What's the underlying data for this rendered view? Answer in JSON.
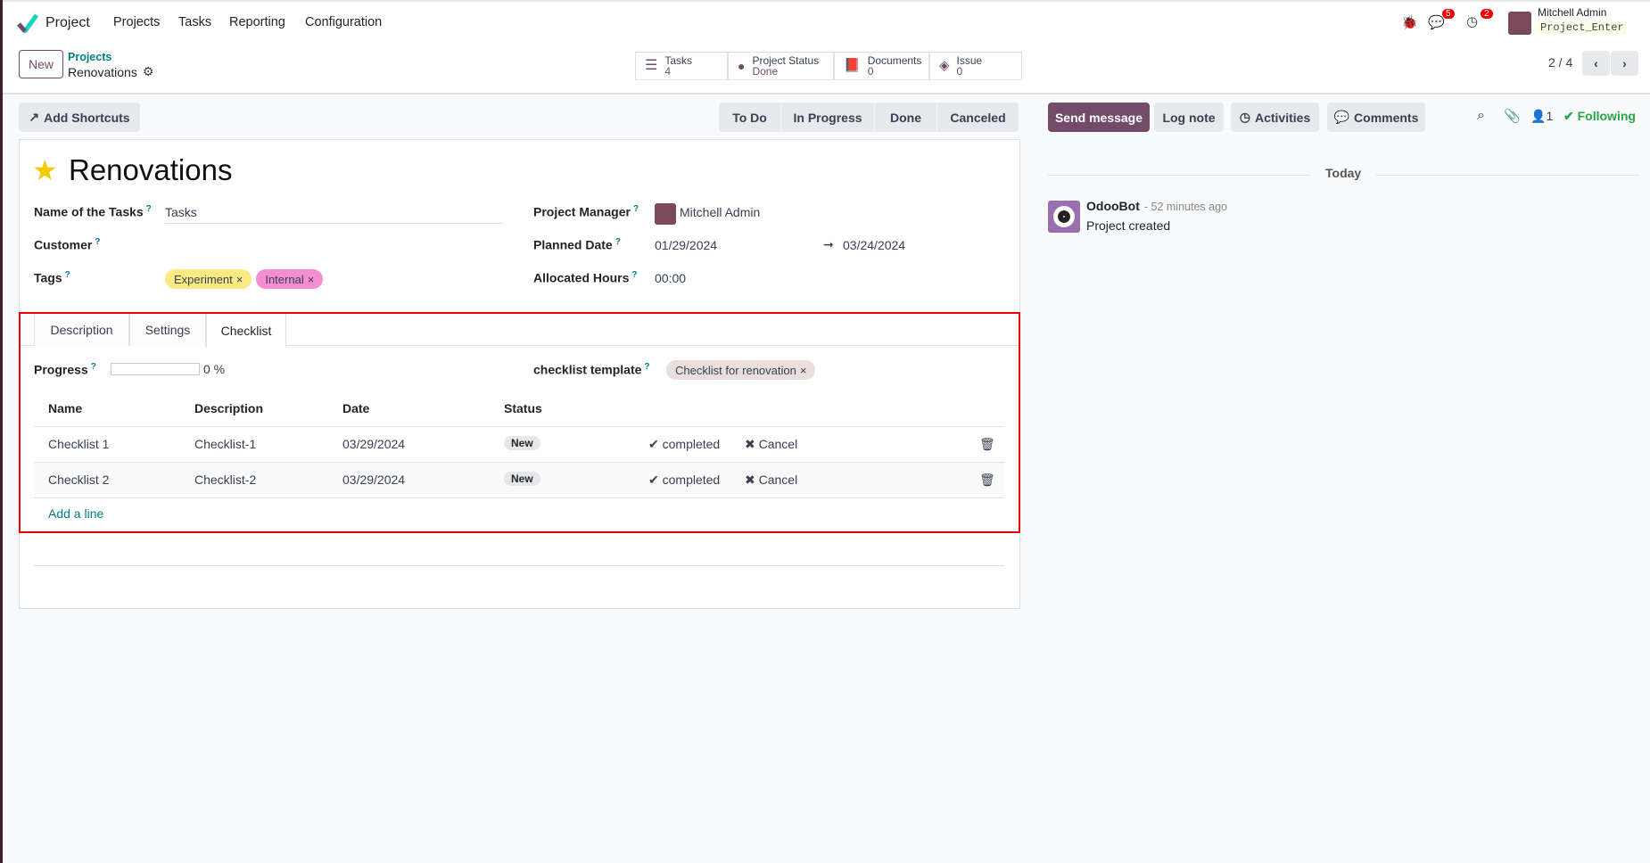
{
  "nav": {
    "app": "Project",
    "menu": [
      "Projects",
      "Tasks",
      "Reporting",
      "Configuration"
    ],
    "badges": {
      "messages": "5",
      "activities": "2"
    },
    "user": "Mitchell Admin",
    "db": "Project_Enter"
  },
  "control": {
    "new": "New",
    "breadcrumb_parent": "Projects",
    "breadcrumb_current": "Renovations",
    "pager": "2 / 4",
    "stats": [
      {
        "label": "Tasks",
        "value": "4"
      },
      {
        "label": "Project Status",
        "value": "Done"
      },
      {
        "label": "Documents",
        "value": "0"
      },
      {
        "label": "Issue",
        "value": "0"
      }
    ]
  },
  "add_shortcuts": "Add Shortcuts",
  "stages": [
    "To Do",
    "In Progress",
    "Done",
    "Canceled"
  ],
  "form": {
    "title": "Renovations",
    "name_tasks_label": "Name of the Tasks",
    "name_tasks": "Tasks",
    "customer_label": "Customer",
    "tags_label": "Tags",
    "tags": [
      {
        "name": "Experiment",
        "color": "#fbe983"
      },
      {
        "name": "Internal",
        "color": "#f58ed1"
      }
    ],
    "pm_label": "Project Manager",
    "pm": "Mitchell Admin",
    "planned_label": "Planned Date",
    "date_start": "01/29/2024",
    "date_end": "03/24/2024",
    "hours_label": "Allocated Hours",
    "hours": "00:00",
    "help": "?"
  },
  "tabs": [
    "Description",
    "Settings",
    "Checklist"
  ],
  "checklist": {
    "progress_label": "Progress",
    "progress": 0,
    "progress_text": "0 %",
    "template_label": "checklist template",
    "template": "Checklist for renovation",
    "headers": [
      "Name",
      "Description",
      "Date",
      "Status"
    ],
    "rows": [
      {
        "name": "Checklist 1",
        "desc": "Checklist-1",
        "date": "03/29/2024",
        "status": "New",
        "complete": "completed",
        "cancel": "Cancel"
      },
      {
        "name": "Checklist 2",
        "desc": "Checklist-2",
        "date": "03/29/2024",
        "status": "New",
        "complete": "completed",
        "cancel": "Cancel"
      }
    ],
    "add_line": "Add a line"
  },
  "chatter": {
    "send": "Send message",
    "log": "Log note",
    "activities": "Activities",
    "comments": "Comments",
    "followers": "1",
    "following": "Following",
    "today": "Today",
    "author": "OdooBot",
    "time": "- 52 minutes ago",
    "message": "Project created"
  },
  "colors": {
    "brand": "#714b67",
    "link": "#017e84",
    "highlight": "#ee0000"
  }
}
